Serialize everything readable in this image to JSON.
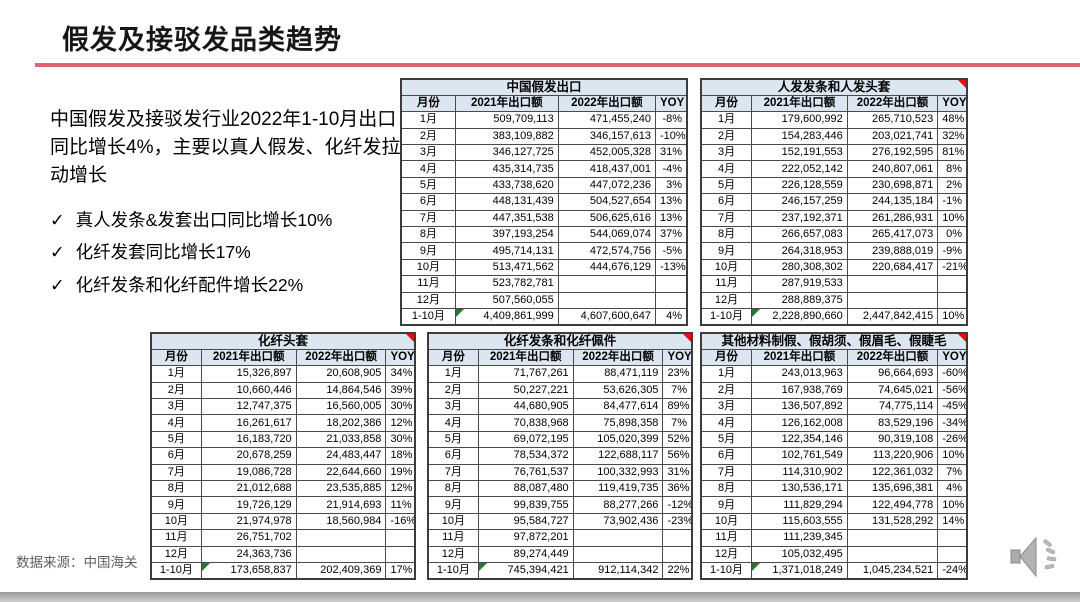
{
  "slide": {
    "title": "假发及接驳发品类趋势",
    "summary": "中国假发及接驳发行业2022年1-10月出口同比增长4%，主要以真人假发、化纤发拉动增长",
    "check_glyph": "✓",
    "bullets": [
      "真人发条&发套出口同比增长10%",
      "化纤发套同比增长17%",
      "化纤发条和化纤配件增长22%"
    ]
  },
  "colors": {
    "accent": "#dc6370",
    "header_bg": "#dce6f1",
    "note_red": "#ff0000",
    "formula_green": "#1f7a33"
  },
  "table_headers": [
    "月份",
    "2021年出口额",
    "2022年出口额",
    "YOY"
  ],
  "tables": [
    {
      "title": "中国假发出口",
      "note_marker": false,
      "rows": [
        [
          "1月",
          "509,709,113",
          "471,455,240",
          "-8%"
        ],
        [
          "2月",
          "383,109,882",
          "346,157,613",
          "-10%"
        ],
        [
          "3月",
          "346,127,725",
          "452,005,328",
          "31%"
        ],
        [
          "4月",
          "435,314,735",
          "418,437,001",
          "-4%"
        ],
        [
          "5月",
          "433,738,620",
          "447,072,236",
          "3%"
        ],
        [
          "6月",
          "448,131,439",
          "504,527,654",
          "13%"
        ],
        [
          "7月",
          "447,351,538",
          "506,625,616",
          "13%"
        ],
        [
          "8月",
          "397,193,254",
          "544,069,074",
          "37%"
        ],
        [
          "9月",
          "495,714,131",
          "472,574,756",
          "-5%"
        ],
        [
          "10月",
          "513,471,562",
          "444,676,129",
          "-13%"
        ],
        [
          "11月",
          "523,782,781",
          "",
          ""
        ],
        [
          "12月",
          "507,560,055",
          "",
          ""
        ],
        [
          "1-10月",
          "4,409,861,999",
          "4,607,600,647",
          "4%"
        ]
      ]
    },
    {
      "title": "人发发条和人发头套",
      "note_marker": true,
      "rows": [
        [
          "1月",
          "179,600,992",
          "265,710,523",
          "48%"
        ],
        [
          "2月",
          "154,283,446",
          "203,021,741",
          "32%"
        ],
        [
          "3月",
          "152,191,553",
          "276,192,595",
          "81%"
        ],
        [
          "4月",
          "222,052,142",
          "240,807,061",
          "8%"
        ],
        [
          "5月",
          "226,128,559",
          "230,698,871",
          "2%"
        ],
        [
          "6月",
          "246,157,259",
          "244,135,184",
          "-1%"
        ],
        [
          "7月",
          "237,192,371",
          "261,286,931",
          "10%"
        ],
        [
          "8月",
          "266,657,083",
          "265,417,073",
          "0%"
        ],
        [
          "9月",
          "264,318,953",
          "239,888,019",
          "-9%"
        ],
        [
          "10月",
          "280,308,302",
          "220,684,417",
          "-21%"
        ],
        [
          "11月",
          "287,919,533",
          "",
          ""
        ],
        [
          "12月",
          "288,889,375",
          "",
          ""
        ],
        [
          "1-10月",
          "2,228,890,660",
          "2,447,842,415",
          "10%"
        ]
      ]
    },
    {
      "title": "化纤头套",
      "note_marker": true,
      "rows": [
        [
          "1月",
          "15,326,897",
          "20,608,905",
          "34%"
        ],
        [
          "2月",
          "10,660,446",
          "14,864,546",
          "39%"
        ],
        [
          "3月",
          "12,747,375",
          "16,560,005",
          "30%"
        ],
        [
          "4月",
          "16,261,617",
          "18,202,386",
          "12%"
        ],
        [
          "5月",
          "16,183,720",
          "21,033,858",
          "30%"
        ],
        [
          "6月",
          "20,678,259",
          "24,483,447",
          "18%"
        ],
        [
          "7月",
          "19,086,728",
          "22,644,660",
          "19%"
        ],
        [
          "8月",
          "21,012,688",
          "23,535,885",
          "12%"
        ],
        [
          "9月",
          "19,726,129",
          "21,914,693",
          "11%"
        ],
        [
          "10月",
          "21,974,978",
          "18,560,984",
          "-16%"
        ],
        [
          "11月",
          "26,751,702",
          "",
          ""
        ],
        [
          "12月",
          "24,363,736",
          "",
          ""
        ],
        [
          "1-10月",
          "173,658,837",
          "202,409,369",
          "17%"
        ]
      ]
    },
    {
      "title": "化纤发条和化纤佩件",
      "note_marker": true,
      "rows": [
        [
          "1月",
          "71,767,261",
          "88,471,119",
          "23%"
        ],
        [
          "2月",
          "50,227,221",
          "53,626,305",
          "7%"
        ],
        [
          "3月",
          "44,680,905",
          "84,477,614",
          "89%"
        ],
        [
          "4月",
          "70,838,968",
          "75,898,358",
          "7%"
        ],
        [
          "5月",
          "69,072,195",
          "105,020,399",
          "52%"
        ],
        [
          "6月",
          "78,534,372",
          "122,688,117",
          "56%"
        ],
        [
          "7月",
          "76,761,537",
          "100,332,993",
          "31%"
        ],
        [
          "8月",
          "88,087,480",
          "119,419,735",
          "36%"
        ],
        [
          "9月",
          "99,839,755",
          "88,277,266",
          "-12%"
        ],
        [
          "10月",
          "95,584,727",
          "73,902,436",
          "-23%"
        ],
        [
          "11月",
          "97,872,201",
          "",
          ""
        ],
        [
          "12月",
          "89,274,449",
          "",
          ""
        ],
        [
          "1-10月",
          "745,394,421",
          "912,114,342",
          "22%"
        ]
      ]
    },
    {
      "title": "其他材料制假、假胡须、假眉毛、假睫毛",
      "note_marker": true,
      "rows": [
        [
          "1月",
          "243,013,963",
          "96,664,693",
          "-60%"
        ],
        [
          "2月",
          "167,938,769",
          "74,645,021",
          "-56%"
        ],
        [
          "3月",
          "136,507,892",
          "74,775,114",
          "-45%"
        ],
        [
          "4月",
          "126,162,008",
          "83,529,196",
          "-34%"
        ],
        [
          "5月",
          "122,354,146",
          "90,319,108",
          "-26%"
        ],
        [
          "6月",
          "102,761,549",
          "113,220,906",
          "10%"
        ],
        [
          "7月",
          "114,310,902",
          "122,361,032",
          "7%"
        ],
        [
          "8月",
          "130,536,171",
          "135,696,381",
          "4%"
        ],
        [
          "9月",
          "111,829,294",
          "122,494,778",
          "10%"
        ],
        [
          "10月",
          "115,603,555",
          "131,528,292",
          "14%"
        ],
        [
          "11月",
          "111,239,345",
          "",
          ""
        ],
        [
          "12月",
          "105,032,495",
          "",
          ""
        ],
        [
          "1-10月",
          "1,371,018,249",
          "1,045,234,521",
          "-24%"
        ]
      ]
    }
  ],
  "footer": {
    "source": "数据来源：中国海关",
    "audio_icon": "speaker"
  }
}
